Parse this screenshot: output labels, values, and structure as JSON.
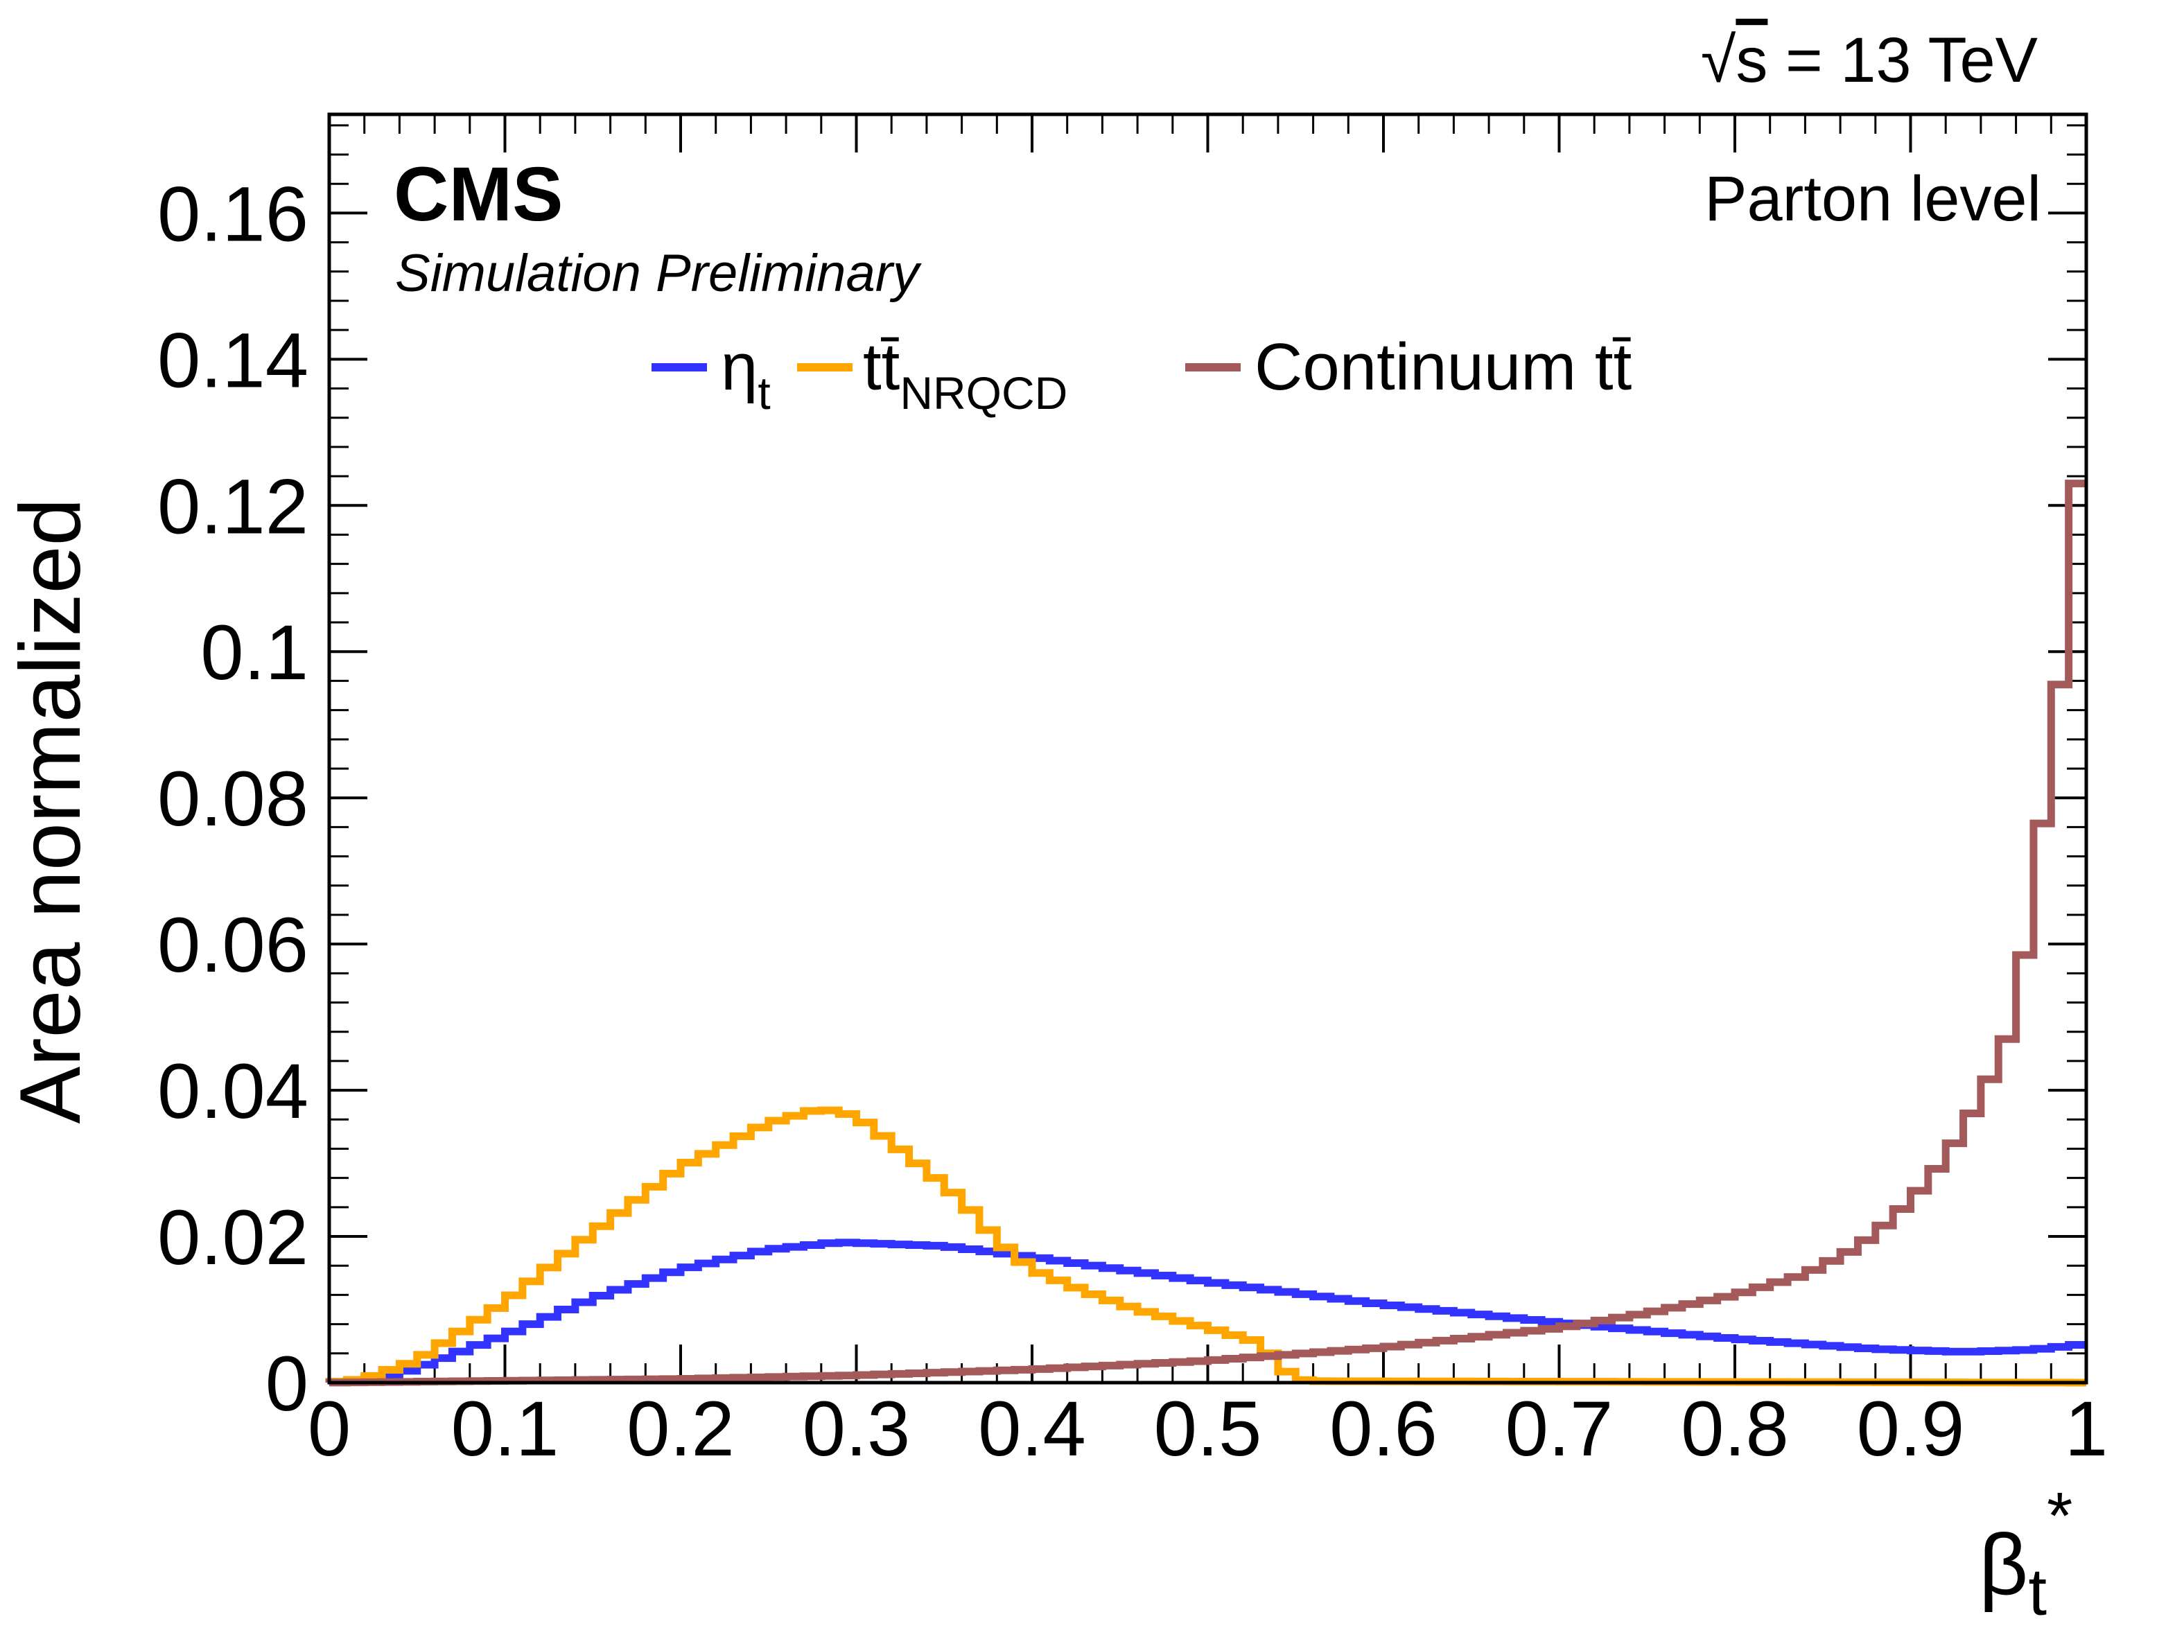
{
  "chart_data": {
    "type": "line",
    "drawstyle": "step",
    "title": "",
    "top_right_label": {
      "root_symbol": "√",
      "s_text": "s",
      "rest": " = 13 TeV"
    },
    "cms_label": "CMS",
    "sub_label": "Simulation Preliminary",
    "annotation": "Parton level",
    "xlabel": {
      "main": "β",
      "sub": "t",
      "sup": "*"
    },
    "ylabel": "Area normalized",
    "xlim": [
      0,
      1
    ],
    "ylim": [
      0,
      0.1735
    ],
    "xticks": [
      {
        "value": 0,
        "label": "0"
      },
      {
        "value": 0.1,
        "label": "0.1"
      },
      {
        "value": 0.2,
        "label": "0.2"
      },
      {
        "value": 0.3,
        "label": "0.3"
      },
      {
        "value": 0.4,
        "label": "0.4"
      },
      {
        "value": 0.5,
        "label": "0.5"
      },
      {
        "value": 0.6,
        "label": "0.6"
      },
      {
        "value": 0.7,
        "label": "0.7"
      },
      {
        "value": 0.8,
        "label": "0.8"
      },
      {
        "value": 0.9,
        "label": "0.9"
      },
      {
        "value": 1,
        "label": "1"
      }
    ],
    "yticks": [
      {
        "value": 0,
        "label": "0"
      },
      {
        "value": 0.02,
        "label": "0.02"
      },
      {
        "value": 0.04,
        "label": "0.04"
      },
      {
        "value": 0.06,
        "label": "0.06"
      },
      {
        "value": 0.08,
        "label": "0.08"
      },
      {
        "value": 0.1,
        "label": "0.1"
      },
      {
        "value": 0.12,
        "label": "0.12"
      },
      {
        "value": 0.14,
        "label": "0.14"
      },
      {
        "value": 0.16,
        "label": "0.16"
      }
    ],
    "legend_position": "top-center",
    "series": [
      {
        "name": "eta_t",
        "legend": {
          "main": "η",
          "sub": "t"
        },
        "color": "#3333ff",
        "points": [
          [
            0,
            0
          ],
          [
            0.03,
            0.0005
          ],
          [
            0.05,
            0.002
          ],
          [
            0.1,
            0.0065
          ],
          [
            0.15,
            0.0115
          ],
          [
            0.2,
            0.0155
          ],
          [
            0.25,
            0.0182
          ],
          [
            0.29,
            0.0192
          ],
          [
            0.35,
            0.0187
          ],
          [
            0.4,
            0.0172
          ],
          [
            0.45,
            0.0155
          ],
          [
            0.5,
            0.0138
          ],
          [
            0.6,
            0.0107
          ],
          [
            0.7,
            0.0082
          ],
          [
            0.8,
            0.006
          ],
          [
            0.88,
            0.0046
          ],
          [
            0.93,
            0.0042
          ],
          [
            0.97,
            0.0045
          ],
          [
            1.0,
            0.0053
          ]
        ]
      },
      {
        "name": "ttbar_NRQCD",
        "legend": {
          "main": "tt̄",
          "sub": "NRQCD"
        },
        "color": "#ffa500",
        "points": [
          [
            0,
            0
          ],
          [
            0.02,
            0.0005
          ],
          [
            0.05,
            0.003
          ],
          [
            0.1,
            0.011
          ],
          [
            0.15,
            0.0205
          ],
          [
            0.2,
            0.0295
          ],
          [
            0.25,
            0.0355
          ],
          [
            0.28,
            0.0375
          ],
          [
            0.3,
            0.0365
          ],
          [
            0.33,
            0.031
          ],
          [
            0.36,
            0.025
          ],
          [
            0.38,
            0.0195
          ],
          [
            0.4,
            0.0155
          ],
          [
            0.43,
            0.0125
          ],
          [
            0.46,
            0.01
          ],
          [
            0.5,
            0.0075
          ],
          [
            0.53,
            0.0055
          ],
          [
            0.54,
            0.0025
          ],
          [
            0.55,
            0.0005
          ],
          [
            0.56,
            0.0002
          ],
          [
            1.0,
            0.0
          ]
        ]
      },
      {
        "name": "continuum_ttbar",
        "legend": {
          "main": "Continuum tt̄"
        },
        "color": "#a45a5a",
        "points": [
          [
            0,
            0
          ],
          [
            0.2,
            0.0005
          ],
          [
            0.3,
            0.001
          ],
          [
            0.4,
            0.0018
          ],
          [
            0.5,
            0.003
          ],
          [
            0.6,
            0.0048
          ],
          [
            0.7,
            0.0075
          ],
          [
            0.75,
            0.0095
          ],
          [
            0.8,
            0.012
          ],
          [
            0.84,
            0.0148
          ],
          [
            0.87,
            0.0185
          ],
          [
            0.89,
            0.0225
          ],
          [
            0.91,
            0.0275
          ],
          [
            0.93,
            0.0345
          ],
          [
            0.945,
            0.0415
          ],
          [
            0.955,
            0.047
          ],
          [
            0.96,
            0.054
          ],
          [
            0.97,
            0.063
          ],
          [
            0.975,
            0.0765
          ],
          [
            0.985,
            0.0955
          ],
          [
            0.99,
            0.123
          ],
          [
            1.0,
            0.123
          ]
        ]
      }
    ]
  }
}
